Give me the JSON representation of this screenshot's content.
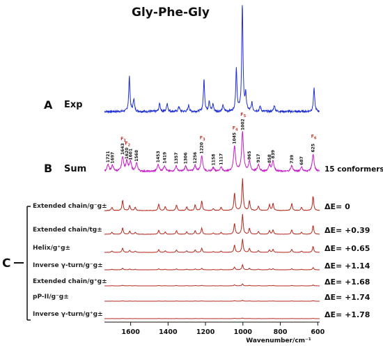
{
  "chart_data": {
    "type": "line",
    "title": "Gly-Phe-Gly",
    "xlabel": "Wavenumber/cm⁻¹",
    "xlim": [
      1740,
      590
    ],
    "x_reversed": true,
    "xticks": [
      1600,
      1400,
      1200,
      1000,
      800,
      600
    ],
    "panels": {
      "A": {
        "letter": "A",
        "label": "Exp",
        "color": "#1f2fd6"
      },
      "B": {
        "letter": "B",
        "label": "Sum",
        "note": "15 conformers",
        "color": "#c81fc8"
      },
      "C": {
        "letter": "C"
      }
    },
    "exp_peaks": [
      [
        1607,
        0.33
      ],
      [
        1583,
        0.12
      ],
      [
        1445,
        0.08
      ],
      [
        1405,
        0.08
      ],
      [
        1342,
        0.05
      ],
      [
        1290,
        0.06
      ],
      [
        1208,
        0.3
      ],
      [
        1180,
        0.1
      ],
      [
        1160,
        0.07
      ],
      [
        1106,
        0.06
      ],
      [
        1035,
        0.4
      ],
      [
        1003,
        1.0
      ],
      [
        985,
        0.15
      ],
      [
        952,
        0.08
      ],
      [
        908,
        0.05
      ],
      [
        832,
        0.06
      ],
      [
        620,
        0.22
      ]
    ],
    "sum_peak_labels": [
      "1721",
      "1697",
      "1643",
      "1620",
      "1601",
      "1568",
      "1453",
      "1419",
      "1357",
      "1306",
      "1256",
      "1220",
      "1158",
      "1117",
      "1045",
      "1002",
      "965",
      "917",
      "858",
      "839",
      "739",
      "687",
      "625"
    ],
    "sum_peak_heights": [
      0.14,
      0.12,
      0.3,
      0.21,
      0.19,
      0.16,
      0.14,
      0.12,
      0.11,
      0.11,
      0.12,
      0.32,
      0.08,
      0.09,
      0.52,
      0.8,
      0.2,
      0.14,
      0.13,
      0.22,
      0.12,
      0.09,
      0.35
    ],
    "f_labels": [
      {
        "text": "F",
        "sub": "1",
        "x": 1643
      },
      {
        "text": "F",
        "sub": "2",
        "x": 1620
      },
      {
        "text": "F",
        "sub": "3",
        "x": 1220
      },
      {
        "text": "F",
        "sub": "4",
        "x": 1045
      },
      {
        "text": "F",
        "sub": "5",
        "x": 1002
      },
      {
        "text": "F",
        "sub": "6",
        "x": 625
      }
    ],
    "conformers": [
      {
        "label": "Extended chain/g⁻g±",
        "energy": "ΔE= 0",
        "scale": 1.0
      },
      {
        "label": "Extended chain/tg±",
        "energy": "ΔE= +0.39",
        "scale": 0.62
      },
      {
        "label": "Helix/g⁺g±",
        "energy": "ΔE= +0.65",
        "scale": 0.42
      },
      {
        "label": "Inverse γ-turn/g⁻g±",
        "energy": "ΔE= +1.14",
        "scale": 0.16
      },
      {
        "label": "Extended chain/g⁺g±",
        "energy": "ΔE= +1.68",
        "scale": 0.06
      },
      {
        "label": "pP-II/g⁻g±",
        "energy": "ΔE= +1.74",
        "scale": 0.03
      },
      {
        "label": "Inverse γ-turn/g⁺g±",
        "energy": "ΔE= +1.78",
        "scale": 0.02
      }
    ],
    "conformer_color": "#b5271b",
    "conformer_peaks": [
      [
        1700,
        0.1
      ],
      [
        1643,
        0.32
      ],
      [
        1605,
        0.16
      ],
      [
        1575,
        0.1
      ],
      [
        1450,
        0.2
      ],
      [
        1415,
        0.12
      ],
      [
        1355,
        0.18
      ],
      [
        1300,
        0.12
      ],
      [
        1255,
        0.18
      ],
      [
        1220,
        0.3
      ],
      [
        1158,
        0.06
      ],
      [
        1117,
        0.1
      ],
      [
        1045,
        0.55
      ],
      [
        1002,
        1.0
      ],
      [
        965,
        0.3
      ],
      [
        917,
        0.14
      ],
      [
        858,
        0.18
      ],
      [
        839,
        0.22
      ],
      [
        739,
        0.22
      ],
      [
        687,
        0.1
      ],
      [
        625,
        0.45
      ]
    ]
  }
}
